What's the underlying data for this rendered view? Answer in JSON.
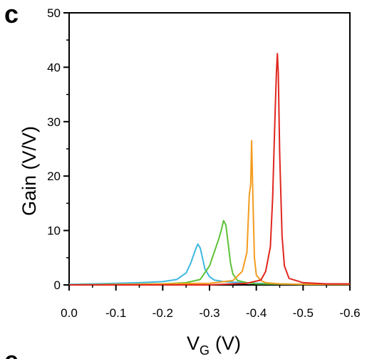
{
  "panel_label": "c",
  "next_panel_label": "e",
  "chart_data": {
    "type": "line",
    "xlabel": "V",
    "xlabel_subscript": "G",
    "xlabel_unit": "(V)",
    "ylabel": "Gain (V/V)",
    "xlim": [
      0.0,
      -0.6
    ],
    "ylim": [
      0,
      50
    ],
    "x_ticks": [
      0.0,
      -0.1,
      -0.2,
      -0.3,
      -0.4,
      -0.5,
      -0.6
    ],
    "x_tick_labels": [
      "0.0",
      "-0.1",
      "-0.2",
      "-0.3",
      "-0.4",
      "-0.5",
      "-0.6"
    ],
    "y_ticks": [
      0,
      10,
      20,
      30,
      40,
      50
    ],
    "y_tick_labels": [
      "0",
      "10",
      "20",
      "30",
      "40",
      "50"
    ],
    "grid": false,
    "legend": "none",
    "series": [
      {
        "color": "#3DB8E0",
        "x": [
          0.0,
          -0.05,
          -0.1,
          -0.15,
          -0.2,
          -0.23,
          -0.25,
          -0.26,
          -0.27,
          -0.275,
          -0.28,
          -0.285,
          -0.29,
          -0.3,
          -0.31,
          -0.33,
          -0.35,
          -0.4,
          -0.45,
          -0.5,
          -0.6
        ],
        "y": [
          0.1,
          0.2,
          0.3,
          0.4,
          0.6,
          1.0,
          2.2,
          4.0,
          6.5,
          7.5,
          6.8,
          5.0,
          3.0,
          1.5,
          0.9,
          0.6,
          0.5,
          0.3,
          0.2,
          0.1,
          0.1
        ]
      },
      {
        "color": "#5CC236",
        "x": [
          0.0,
          -0.1,
          -0.2,
          -0.25,
          -0.28,
          -0.3,
          -0.31,
          -0.32,
          -0.325,
          -0.33,
          -0.335,
          -0.34,
          -0.345,
          -0.35,
          -0.36,
          -0.38,
          -0.4,
          -0.5,
          -0.6
        ],
        "y": [
          0.0,
          0.1,
          0.2,
          0.4,
          1.0,
          3.5,
          6.0,
          8.5,
          10.0,
          11.8,
          11.0,
          7.5,
          4.0,
          2.0,
          0.8,
          0.4,
          0.2,
          0.1,
          0.1
        ]
      },
      {
        "color": "#F39C1E",
        "x": [
          0.0,
          -0.1,
          -0.2,
          -0.3,
          -0.35,
          -0.37,
          -0.38,
          -0.385,
          -0.388,
          -0.39,
          -0.393,
          -0.396,
          -0.4,
          -0.41,
          -0.42,
          -0.45,
          -0.5,
          -0.6
        ],
        "y": [
          0.0,
          0.1,
          0.2,
          0.3,
          0.8,
          2.5,
          6.0,
          16.5,
          18.5,
          26.5,
          15.0,
          5.0,
          1.8,
          0.8,
          0.4,
          0.2,
          0.1,
          0.1
        ]
      },
      {
        "color": "#E0261E",
        "x": [
          0.0,
          -0.1,
          -0.2,
          -0.3,
          -0.38,
          -0.41,
          -0.42,
          -0.43,
          -0.435,
          -0.44,
          -0.443,
          -0.445,
          -0.447,
          -0.45,
          -0.455,
          -0.46,
          -0.47,
          -0.5,
          -0.55,
          -0.6
        ],
        "y": [
          0.0,
          0.0,
          0.0,
          0.0,
          0.3,
          0.9,
          2.5,
          7.0,
          16.0,
          31.0,
          39.0,
          42.5,
          39.0,
          24.0,
          9.0,
          3.5,
          1.2,
          0.4,
          0.2,
          0.2
        ]
      }
    ]
  }
}
